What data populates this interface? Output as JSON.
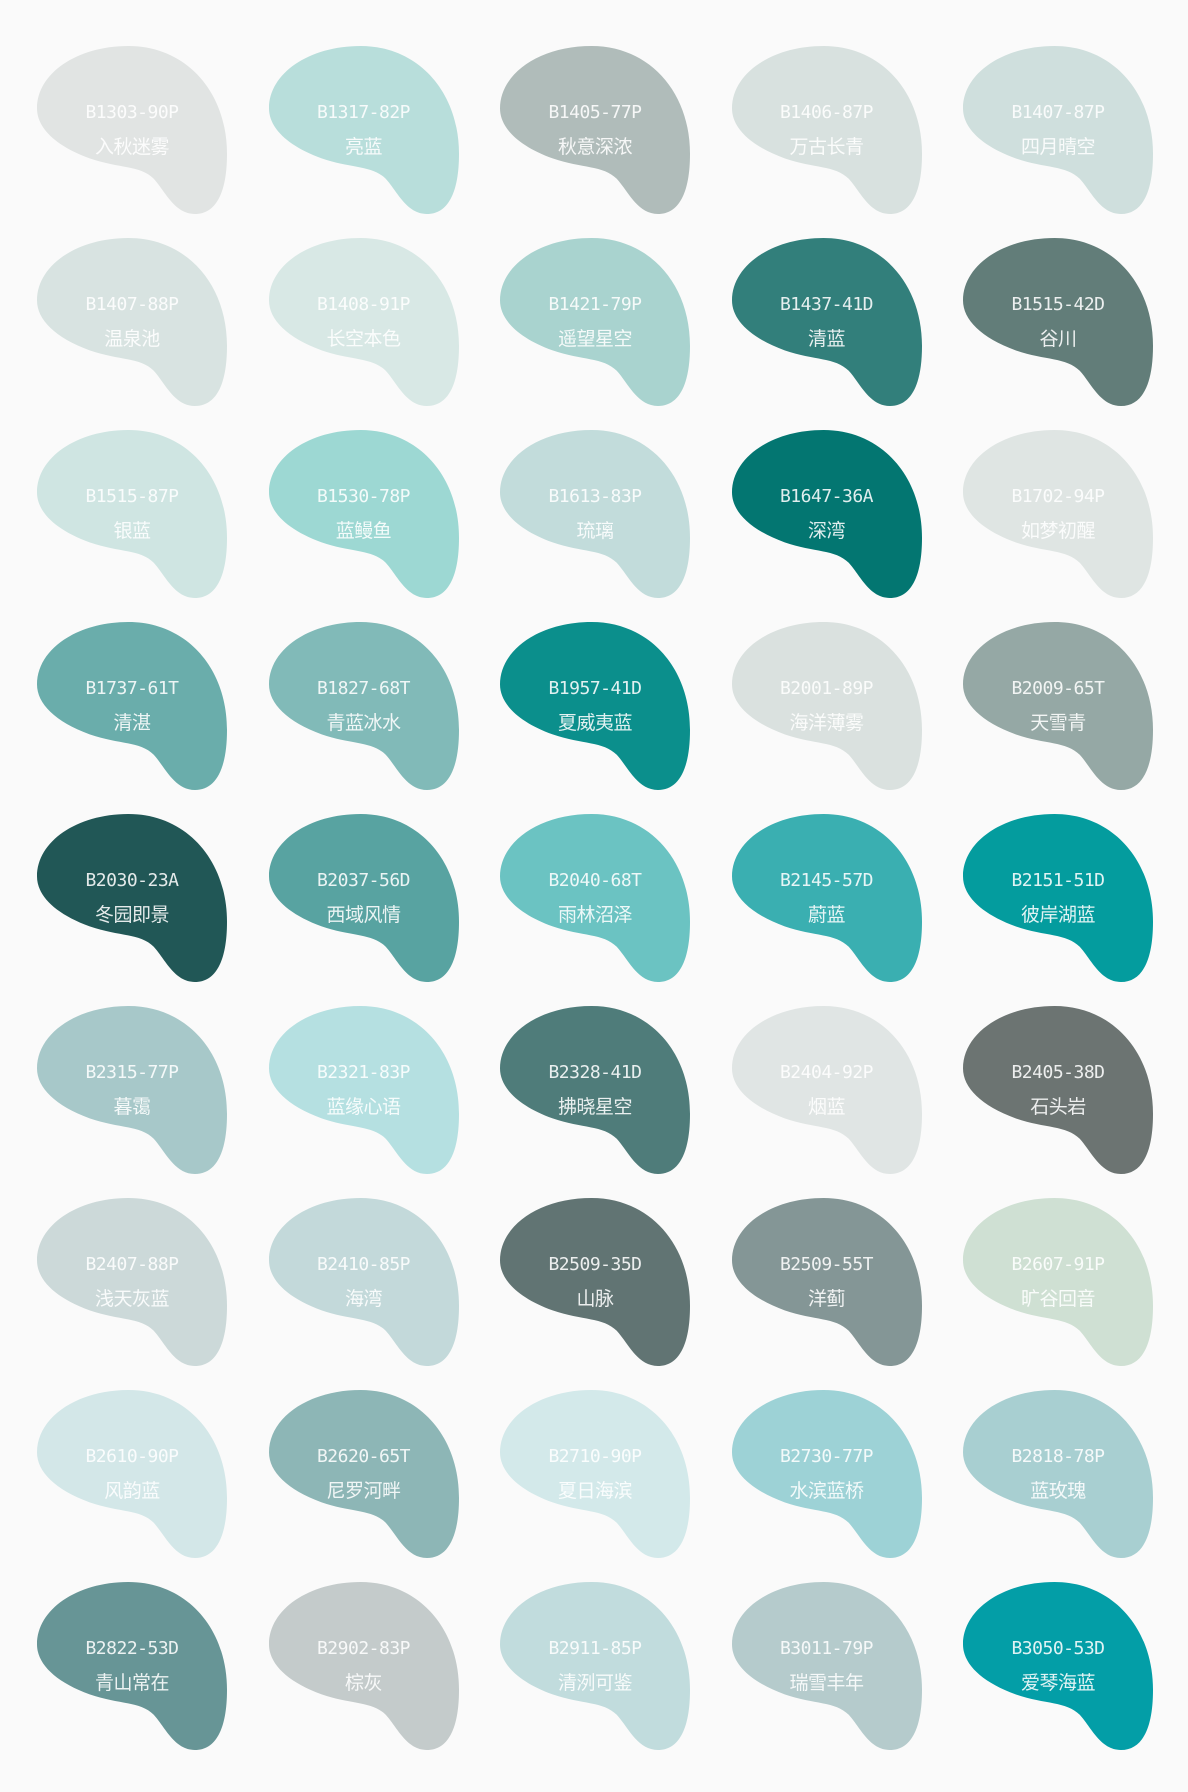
{
  "swatches": [
    {
      "code": "B1303-90P",
      "name": "入秋迷雾",
      "color": "#e1e4e3"
    },
    {
      "code": "B1317-82P",
      "name": "亮蓝",
      "color": "#b8dedb"
    },
    {
      "code": "B1405-77P",
      "name": "秋意深浓",
      "color": "#b0bcba"
    },
    {
      "code": "B1406-87P",
      "name": "万古长青",
      "color": "#d8e1df"
    },
    {
      "code": "B1407-87P",
      "name": "四月晴空",
      "color": "#cfdfdd"
    },
    {
      "code": "B1407-88P",
      "name": "温泉池",
      "color": "#d8e3e1"
    },
    {
      "code": "B1408-91P",
      "name": "长空本色",
      "color": "#d8e8e5"
    },
    {
      "code": "B1421-79P",
      "name": "遥望星空",
      "color": "#a9d3cf"
    },
    {
      "code": "B1437-41D",
      "name": "清蓝",
      "color": "#327f7b"
    },
    {
      "code": "B1515-42D",
      "name": "谷川",
      "color": "#627d79"
    },
    {
      "code": "B1515-87P",
      "name": "银蓝",
      "color": "#cfe5e2"
    },
    {
      "code": "B1530-78P",
      "name": "蓝鳗鱼",
      "color": "#9dd8d3"
    },
    {
      "code": "B1613-83P",
      "name": "琉璃",
      "color": "#c2dcdb"
    },
    {
      "code": "B1647-36A",
      "name": "深湾",
      "color": "#037671"
    },
    {
      "code": "B1702-94P",
      "name": "如梦初醒",
      "color": "#dfe5e3"
    },
    {
      "code": "B1737-61T",
      "name": "清湛",
      "color": "#6aadab"
    },
    {
      "code": "B1827-68T",
      "name": "青蓝冰水",
      "color": "#81bab8"
    },
    {
      "code": "B1957-41D",
      "name": "夏威夷蓝",
      "color": "#0b8f8c"
    },
    {
      "code": "B2001-89P",
      "name": "海洋薄雾",
      "color": "#dae1df"
    },
    {
      "code": "B2009-65T",
      "name": "天雪青",
      "color": "#95a8a5"
    },
    {
      "code": "B2030-23A",
      "name": "冬园即景",
      "color": "#215756"
    },
    {
      "code": "B2037-56D",
      "name": "西域风情",
      "color": "#58a3a1"
    },
    {
      "code": "B2040-68T",
      "name": "雨林沼泽",
      "color": "#6bc3c2"
    },
    {
      "code": "B2145-57D",
      "name": "蔚蓝",
      "color": "#3aafb1"
    },
    {
      "code": "B2151-51D",
      "name": "彼岸湖蓝",
      "color": "#049c9e"
    },
    {
      "code": "B2315-77P",
      "name": "暮霭",
      "color": "#a7c8c9"
    },
    {
      "code": "B2321-83P",
      "name": "蓝缘心语",
      "color": "#b5e0e1"
    },
    {
      "code": "B2328-41D",
      "name": "拂晓星空",
      "color": "#4f7c7a"
    },
    {
      "code": "B2404-92P",
      "name": "烟蓝",
      "color": "#e0e5e4"
    },
    {
      "code": "B2405-38D",
      "name": "石头岩",
      "color": "#6c7472"
    },
    {
      "code": "B2407-88P",
      "name": "浅天灰蓝",
      "color": "#ccd9d9"
    },
    {
      "code": "B2410-85P",
      "name": "海湾",
      "color": "#c3d9da"
    },
    {
      "code": "B2509-35D",
      "name": "山脉",
      "color": "#617473"
    },
    {
      "code": "B2509-55T",
      "name": "洋蓟",
      "color": "#849696"
    },
    {
      "code": "B2607-91P",
      "name": "旷谷回音",
      "color": "#cfe0d3"
    },
    {
      "code": "B2610-90P",
      "name": "风韵蓝",
      "color": "#d3e7e8"
    },
    {
      "code": "B2620-65T",
      "name": "尼罗河畔",
      "color": "#8db6b6"
    },
    {
      "code": "B2710-90P",
      "name": "夏日海滨",
      "color": "#d3e9ea"
    },
    {
      "code": "B2730-77P",
      "name": "水滨蓝桥",
      "color": "#9dd2d6"
    },
    {
      "code": "B2818-78P",
      "name": "蓝玫瑰",
      "color": "#a8cfd1"
    },
    {
      "code": "B2822-53D",
      "name": "青山常在",
      "color": "#679596"
    },
    {
      "code": "B2902-83P",
      "name": "棕灰",
      "color": "#c4cbcb"
    },
    {
      "code": "B2911-85P",
      "name": "清洌可鉴",
      "color": "#c1dcdd"
    },
    {
      "code": "B3011-79P",
      "name": "瑞雪丰年",
      "color": "#b5cbcc"
    },
    {
      "code": "B3050-53D",
      "name": "爱琴海蓝",
      "color": "#039ea7"
    }
  ]
}
